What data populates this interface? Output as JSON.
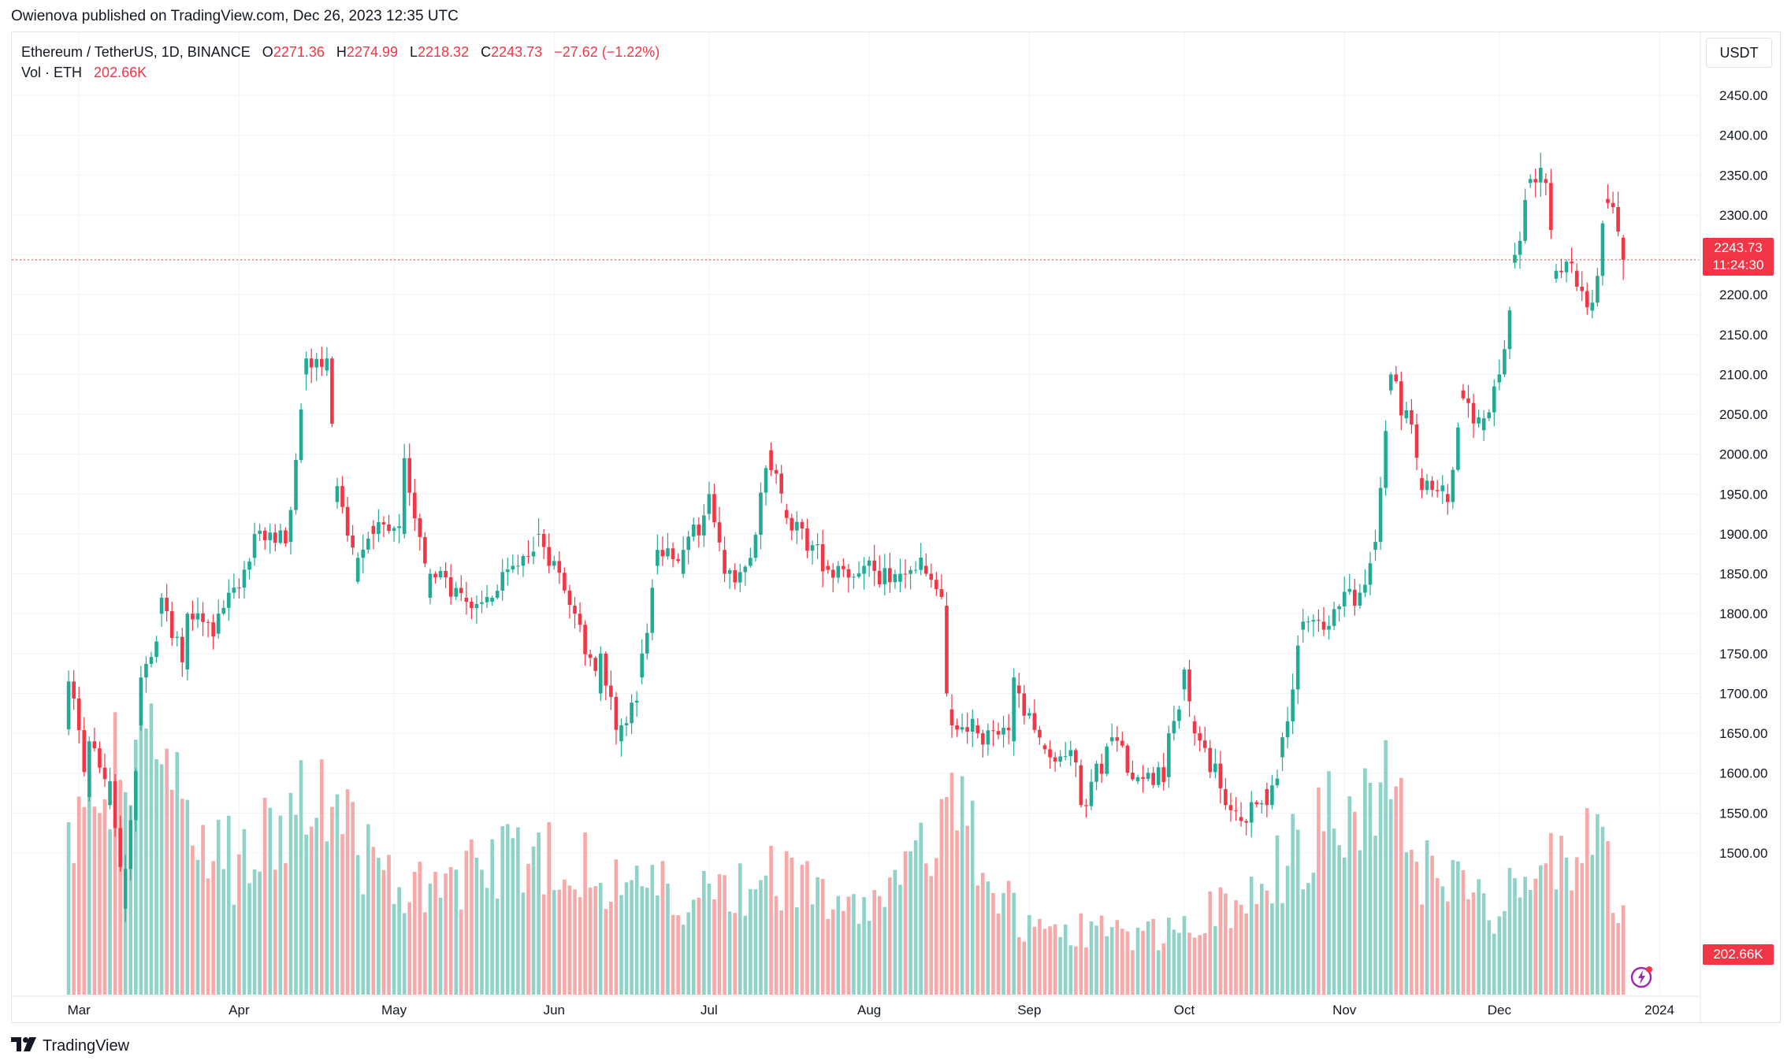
{
  "publish_line": "Owienova published on TradingView.com, Dec 26, 2023 12:35 UTC",
  "legend": {
    "symbol": "Ethereum / TetherUS, 1D, BINANCE",
    "o_label": "O",
    "o_value": "2271.36",
    "h_label": "H",
    "h_value": "2274.99",
    "l_label": "L",
    "l_value": "2218.32",
    "c_label": "C",
    "c_value": "2243.73",
    "change": "−27.62 (−1.22%)",
    "vol_label": "Vol · ETH",
    "vol_value": "202.66K"
  },
  "unit_button": "USDT",
  "last_price_badge": {
    "price": "2243.73",
    "countdown": "11:24:30"
  },
  "volume_badge": "202.66K",
  "footer_brand": "TradingView",
  "icons": {
    "brand": "tradingview-logo-icon",
    "flash": "lightning-icon"
  },
  "colors": {
    "up": "#22ab94",
    "down": "#f23645",
    "up_volume": "#8fd2c8",
    "down_volume": "#f7a8a8",
    "grid": "#f0f3fa"
  },
  "chart_data": {
    "type": "candlestick",
    "title": "Ethereum / TetherUS, 1D, BINANCE",
    "y_axis": {
      "ylim": [
        1475,
        2480
      ],
      "ticks": [
        "1500.00",
        "1550.00",
        "1600.00",
        "1650.00",
        "1700.00",
        "1750.00",
        "1800.00",
        "1850.00",
        "1900.00",
        "1950.00",
        "2000.00",
        "2050.00",
        "2100.00",
        "2150.00",
        "2200.00",
        "2250.00",
        "2300.00",
        "2350.00",
        "2400.00",
        "2450.00"
      ]
    },
    "x_axis": {
      "labels": [
        "Mar",
        "Apr",
        "May",
        "Jun",
        "Jul",
        "Aug",
        "Sep",
        "Oct",
        "Nov",
        "Dec",
        "2024"
      ]
    },
    "last_close": 2243.73,
    "anchors": [
      [
        "2023-02-27",
        1655,
        1715
      ],
      [
        "2023-03-03",
        1570,
        1640
      ],
      [
        "2023-03-07",
        1560,
        1590
      ],
      [
        "2023-03-10",
        1430,
        1480
      ],
      [
        "2023-03-13",
        1660,
        1720
      ],
      [
        "2023-03-17",
        1800,
        1820
      ],
      [
        "2023-03-22",
        1730,
        1800
      ],
      [
        "2023-03-28",
        1775,
        1800
      ],
      [
        "2023-04-04",
        1870,
        1900
      ],
      [
        "2023-04-11",
        1890,
        1930
      ],
      [
        "2023-04-14",
        2100,
        2120
      ],
      [
        "2023-04-18",
        2105,
        2120
      ],
      [
        "2023-04-20",
        1940,
        1960
      ],
      [
        "2023-04-24",
        1840,
        1870
      ],
      [
        "2023-04-27",
        1910,
        1900
      ],
      [
        "2023-05-03",
        1900,
        1995
      ],
      [
        "2023-05-08",
        1820,
        1850
      ],
      [
        "2023-05-15",
        1820,
        1815
      ],
      [
        "2023-05-20",
        1815,
        1820
      ],
      [
        "2023-05-29",
        1900,
        1900
      ],
      [
        "2023-06-05",
        1810,
        1800
      ],
      [
        "2023-06-10",
        1700,
        1750
      ],
      [
        "2023-06-14",
        1640,
        1660
      ],
      [
        "2023-06-18",
        1720,
        1750
      ],
      [
        "2023-06-21",
        1860,
        1880
      ],
      [
        "2023-06-26",
        1850,
        1880
      ],
      [
        "2023-07-01",
        1925,
        1950
      ],
      [
        "2023-07-04",
        1880,
        1850
      ],
      [
        "2023-07-09",
        1860,
        1870
      ],
      [
        "2023-07-13",
        2005,
        1980
      ],
      [
        "2023-07-16",
        1930,
        1920
      ],
      [
        "2023-07-24",
        1860,
        1855
      ],
      [
        "2023-07-31",
        1850,
        1860
      ],
      [
        "2023-08-07",
        1840,
        1850
      ],
      [
        "2023-08-12",
        1860,
        1850
      ],
      [
        "2023-08-16",
        1810,
        1700
      ],
      [
        "2023-08-17",
        1680,
        1660
      ],
      [
        "2023-08-22",
        1660,
        1650
      ],
      [
        "2023-08-29",
        1640,
        1720
      ],
      [
        "2023-08-30",
        1710,
        1700
      ],
      [
        "2023-09-04",
        1635,
        1630
      ],
      [
        "2023-09-11",
        1610,
        1560
      ],
      [
        "2023-09-17",
        1640,
        1645
      ],
      [
        "2023-09-22",
        1590,
        1595
      ],
      [
        "2023-09-28",
        1595,
        1650
      ],
      [
        "2023-10-01",
        1705,
        1730
      ],
      [
        "2023-10-03",
        1665,
        1650
      ],
      [
        "2023-10-09",
        1580,
        1560
      ],
      [
        "2023-10-12",
        1545,
        1540
      ],
      [
        "2023-10-17",
        1580,
        1560
      ],
      [
        "2023-10-20",
        1620,
        1645
      ],
      [
        "2023-10-24",
        1780,
        1790
      ],
      [
        "2023-10-28",
        1790,
        1780
      ],
      [
        "2023-11-03",
        1830,
        1810
      ],
      [
        "2023-11-07",
        1880,
        1890
      ],
      [
        "2023-11-10",
        2080,
        2100
      ],
      [
        "2023-11-13",
        2045,
        2055
      ],
      [
        "2023-11-16",
        1970,
        1955
      ],
      [
        "2023-11-21",
        1950,
        1940
      ],
      [
        "2023-11-24",
        2080,
        2070
      ],
      [
        "2023-11-28",
        2030,
        2045
      ],
      [
        "2023-12-01",
        2090,
        2100
      ],
      [
        "2023-12-04",
        2240,
        2250
      ],
      [
        "2023-12-07",
        2340,
        2345
      ],
      [
        "2023-12-10",
        2345,
        2340
      ],
      [
        "2023-12-12",
        2220,
        2230
      ],
      [
        "2023-12-16",
        2230,
        2210
      ],
      [
        "2023-12-19",
        2180,
        2190
      ],
      [
        "2023-12-22",
        2320,
        2315
      ],
      [
        "2023-12-25",
        2271.36,
        2243.73
      ]
    ],
    "volume_anchors_k": [
      [
        "2023-02-27",
        380
      ],
      [
        "2023-03-10",
        550
      ],
      [
        "2023-03-13",
        700
      ],
      [
        "2023-03-20",
        450
      ],
      [
        "2023-04-01",
        300
      ],
      [
        "2023-04-17",
        500
      ],
      [
        "2023-04-21",
        400
      ],
      [
        "2023-05-01",
        250
      ],
      [
        "2023-05-12",
        280
      ],
      [
        "2023-06-05",
        350
      ],
      [
        "2023-06-10",
        280
      ],
      [
        "2023-06-15",
        270
      ],
      [
        "2023-07-01",
        230
      ],
      [
        "2023-07-13",
        300
      ],
      [
        "2023-08-01",
        180
      ],
      [
        "2023-08-17",
        450
      ],
      [
        "2023-09-01",
        160
      ],
      [
        "2023-10-01",
        150
      ],
      [
        "2023-10-24",
        350
      ],
      [
        "2023-11-09",
        550
      ],
      [
        "2023-11-15",
        300
      ],
      [
        "2023-12-01",
        200
      ],
      [
        "2023-12-08",
        320
      ],
      [
        "2023-12-20",
        350
      ],
      [
        "2023-12-25",
        202.66
      ]
    ],
    "last_volume_k": 202.66
  }
}
